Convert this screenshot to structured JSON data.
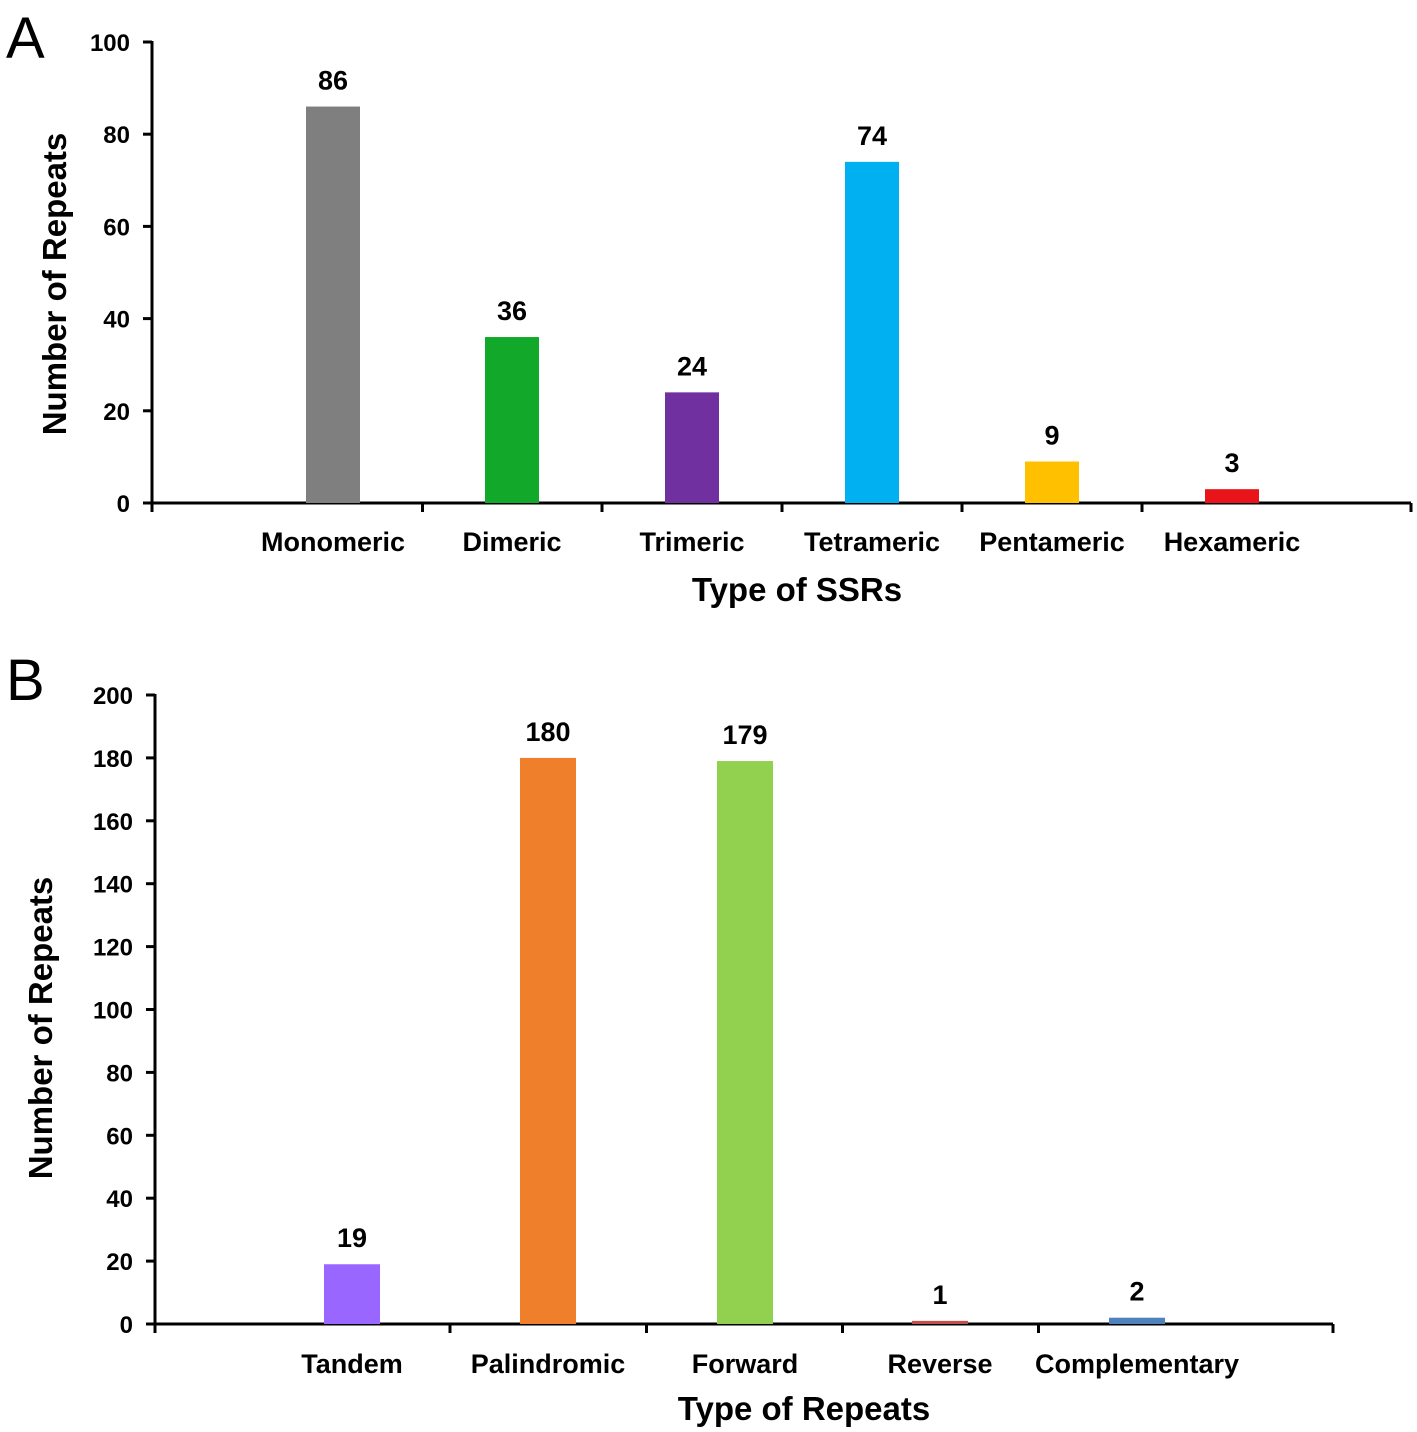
{
  "chart_data": [
    {
      "panel": "A",
      "type": "bar",
      "title": "",
      "xlabel": "Type of SSRs",
      "ylabel": "Number of Repeats",
      "ylim": [
        0,
        100
      ],
      "yticks": [
        0,
        20,
        40,
        60,
        80,
        100
      ],
      "grid": false,
      "legend": "none",
      "categories": [
        "Monomeric",
        "Dimeric",
        "Trimeric",
        "Tetrameric",
        "Pentameric",
        "Hexameric"
      ],
      "values": [
        86,
        36,
        24,
        74,
        9,
        3
      ],
      "colors": [
        "#7f7f7f",
        "#12a829",
        "#7030a0",
        "#00b0f0",
        "#ffc000",
        "#e8141a"
      ]
    },
    {
      "panel": "B",
      "type": "bar",
      "title": "",
      "xlabel": "Type of Repeats",
      "ylabel": "Number of Repeats",
      "ylim": [
        0,
        200
      ],
      "yticks": [
        0,
        20,
        40,
        60,
        80,
        100,
        120,
        140,
        160,
        180,
        200
      ],
      "grid": false,
      "legend": "none",
      "categories": [
        "Tandem",
        "Palindromic",
        "Forward",
        "Reverse",
        "Complementary"
      ],
      "values": [
        19,
        180,
        179,
        1,
        2
      ],
      "colors": [
        "#9966ff",
        "#f07f2c",
        "#92d050",
        "#c0504d",
        "#4f81bd"
      ]
    }
  ]
}
